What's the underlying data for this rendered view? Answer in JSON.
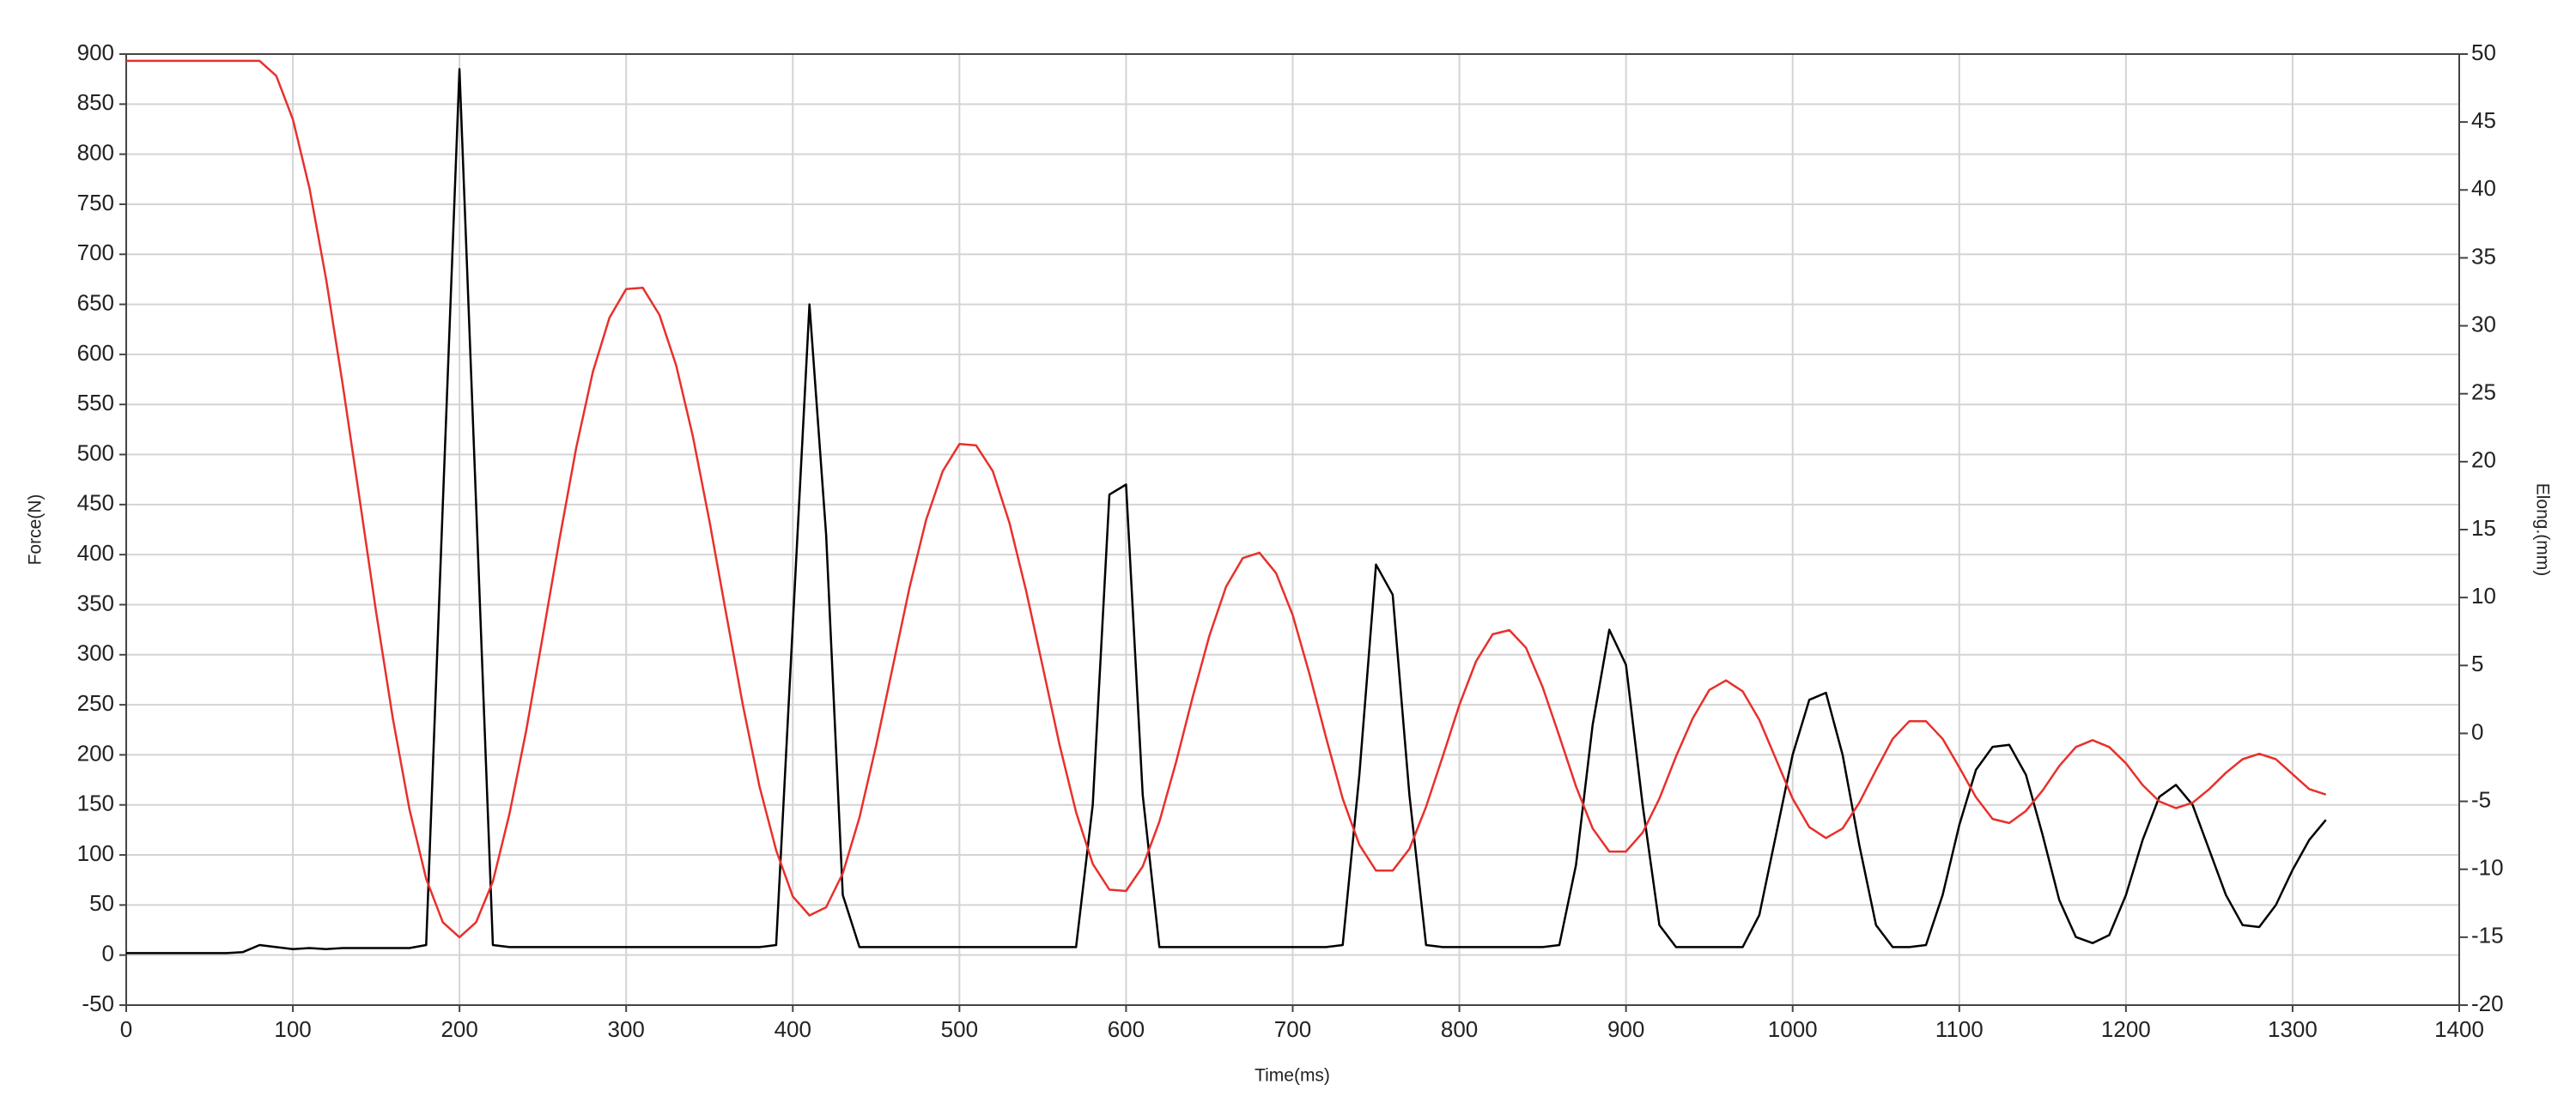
{
  "chart_data": {
    "type": "line",
    "xlabel": "Time(ms)",
    "ylabel": "Force(N)",
    "y2label": "Elong.(mm)",
    "xlim": [
      0,
      1400
    ],
    "xticks": [
      0,
      100,
      200,
      300,
      400,
      500,
      600,
      700,
      800,
      900,
      1000,
      1100,
      1200,
      1300,
      1400
    ],
    "ylim": [
      -50,
      900
    ],
    "yticks": [
      -50,
      0,
      50,
      100,
      150,
      200,
      250,
      300,
      350,
      400,
      450,
      500,
      550,
      600,
      650,
      700,
      750,
      800,
      850,
      900
    ],
    "y2lim": [
      -20,
      50
    ],
    "y2ticks": [
      -20,
      -15,
      -10,
      -5,
      0,
      5,
      10,
      15,
      20,
      25,
      30,
      35,
      40,
      45,
      50
    ],
    "grid": true,
    "x": [
      0,
      10,
      20,
      30,
      40,
      50,
      60,
      70,
      80,
      90,
      100,
      110,
      120,
      130,
      140,
      150,
      160,
      170,
      180,
      190,
      200,
      210,
      220,
      230,
      240,
      250,
      260,
      270,
      280,
      290,
      300,
      310,
      320,
      330,
      340,
      350,
      360,
      370,
      380,
      390,
      400,
      410,
      420,
      430,
      440,
      450,
      460,
      470,
      480,
      490,
      500,
      510,
      520,
      530,
      540,
      550,
      560,
      570,
      580,
      590,
      600,
      610,
      620,
      630,
      640,
      650,
      660,
      670,
      680,
      690,
      700,
      710,
      720,
      730,
      740,
      750,
      760,
      770,
      780,
      790,
      800,
      810,
      820,
      830,
      840,
      850,
      860,
      870,
      880,
      890,
      900,
      910,
      920,
      930,
      940,
      950,
      960,
      970,
      980,
      990,
      1000,
      1010,
      1020,
      1030,
      1040,
      1050,
      1060,
      1070,
      1080,
      1090,
      1100,
      1110,
      1120,
      1130,
      1140,
      1150,
      1160,
      1170,
      1180,
      1190,
      1200,
      1210,
      1220,
      1230,
      1240,
      1250,
      1260,
      1270,
      1280,
      1290,
      1300,
      1310,
      1320
    ],
    "series": [
      {
        "color": "#000000",
        "values": [
          2,
          2,
          2,
          2,
          2,
          2,
          2,
          3,
          10,
          8,
          6,
          7,
          6,
          7,
          7,
          7,
          7,
          7,
          10,
          450,
          885,
          450,
          10,
          8,
          8,
          8,
          8,
          8,
          8,
          8,
          8,
          8,
          8,
          8,
          8,
          8,
          8,
          8,
          8,
          10,
          330,
          650,
          420,
          60,
          8,
          8,
          8,
          8,
          8,
          8,
          8,
          8,
          8,
          8,
          8,
          8,
          8,
          8,
          150,
          460,
          470,
          160,
          8,
          8,
          8,
          8,
          8,
          8,
          8,
          8,
          8,
          8,
          8,
          10,
          180,
          390,
          360,
          160,
          10,
          8,
          8,
          8,
          8,
          8,
          8,
          8,
          10,
          90,
          230,
          325,
          290,
          150,
          30,
          8,
          8,
          8,
          8,
          8,
          40,
          120,
          200,
          255,
          262,
          200,
          110,
          30,
          8,
          8,
          10,
          60,
          130,
          185,
          208,
          210,
          180,
          120,
          55,
          18,
          12,
          20,
          60,
          115,
          158,
          170,
          150,
          105,
          60,
          30,
          28,
          50,
          85,
          115,
          135
        ]
      },
      {
        "color": "#e8302c",
        "axis": "y2",
        "values": [
          49.5,
          49.5,
          49.5,
          49.5,
          49.5,
          49.5,
          49.5,
          49.5,
          49.5,
          48.4,
          45.2,
          40.1,
          33.4,
          25.6,
          17.3,
          8.9,
          1.1,
          -5.6,
          -10.7,
          -13.9,
          -15,
          -13.9,
          -10.9,
          -5.9,
          0.2,
          7.2,
          14.3,
          21,
          26.6,
          30.6,
          32.7,
          32.8,
          30.8,
          27.1,
          21.9,
          15.6,
          8.8,
          2.1,
          -3.9,
          -8.6,
          -12,
          -13.4,
          -12.8,
          -10.3,
          -6.2,
          -0.9,
          4.9,
          10.7,
          15.7,
          19.3,
          21.3,
          21.2,
          19.3,
          15.5,
          10.5,
          4.9,
          -0.8,
          -5.8,
          -9.6,
          -11.5,
          -11.6,
          -9.8,
          -6.5,
          -2.1,
          2.7,
          7.2,
          10.8,
          12.9,
          13.3,
          11.8,
          8.7,
          4.4,
          -0.3,
          -4.8,
          -8.2,
          -10.1,
          -10.1,
          -8.5,
          -5.4,
          -1.7,
          2.1,
          5.3,
          7.3,
          7.6,
          6.3,
          3.4,
          -0.2,
          -3.9,
          -7,
          -8.7,
          -8.7,
          -7.3,
          -4.8,
          -1.7,
          1.1,
          3.2,
          3.9,
          3.1,
          1,
          -1.9,
          -4.8,
          -6.9,
          -7.7,
          -7,
          -5.1,
          -2.7,
          -0.4,
          0.9,
          0.9,
          -0.4,
          -2.5,
          -4.7,
          -6.3,
          -6.6,
          -5.7,
          -4.2,
          -2.4,
          -1,
          -0.5,
          -1,
          -2.2,
          -3.8,
          -5,
          -5.5,
          -5.1,
          -4.1,
          -2.9,
          -1.9,
          -1.5,
          -1.9,
          -3,
          -4.1,
          -4.5
        ]
      }
    ]
  }
}
